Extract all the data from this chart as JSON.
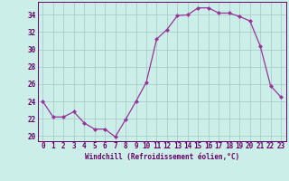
{
  "x": [
    0,
    1,
    2,
    3,
    4,
    5,
    6,
    7,
    8,
    9,
    10,
    11,
    12,
    13,
    14,
    15,
    16,
    17,
    18,
    19,
    20,
    21,
    22,
    23
  ],
  "y": [
    24.0,
    22.2,
    22.2,
    22.8,
    21.5,
    20.8,
    20.8,
    19.9,
    21.9,
    24.0,
    26.2,
    31.2,
    32.3,
    33.9,
    34.0,
    34.8,
    34.8,
    34.2,
    34.2,
    33.8,
    33.3,
    30.4,
    25.8,
    24.5
  ],
  "line_color": "#993399",
  "marker": "D",
  "marker_size": 2,
  "bg_color": "#cceee8",
  "grid_color": "#aacccc",
  "xlabel": "Windchill (Refroidissement éolien,°C)",
  "ylabel_ticks": [
    20,
    22,
    24,
    26,
    28,
    30,
    32,
    34
  ],
  "xlim": [
    -0.5,
    23.5
  ],
  "ylim": [
    19.4,
    35.5
  ],
  "axis_color": "#660066",
  "tick_color": "#660066",
  "tick_fontsize": 5.5,
  "xlabel_fontsize": 5.5,
  "linewidth": 0.9
}
